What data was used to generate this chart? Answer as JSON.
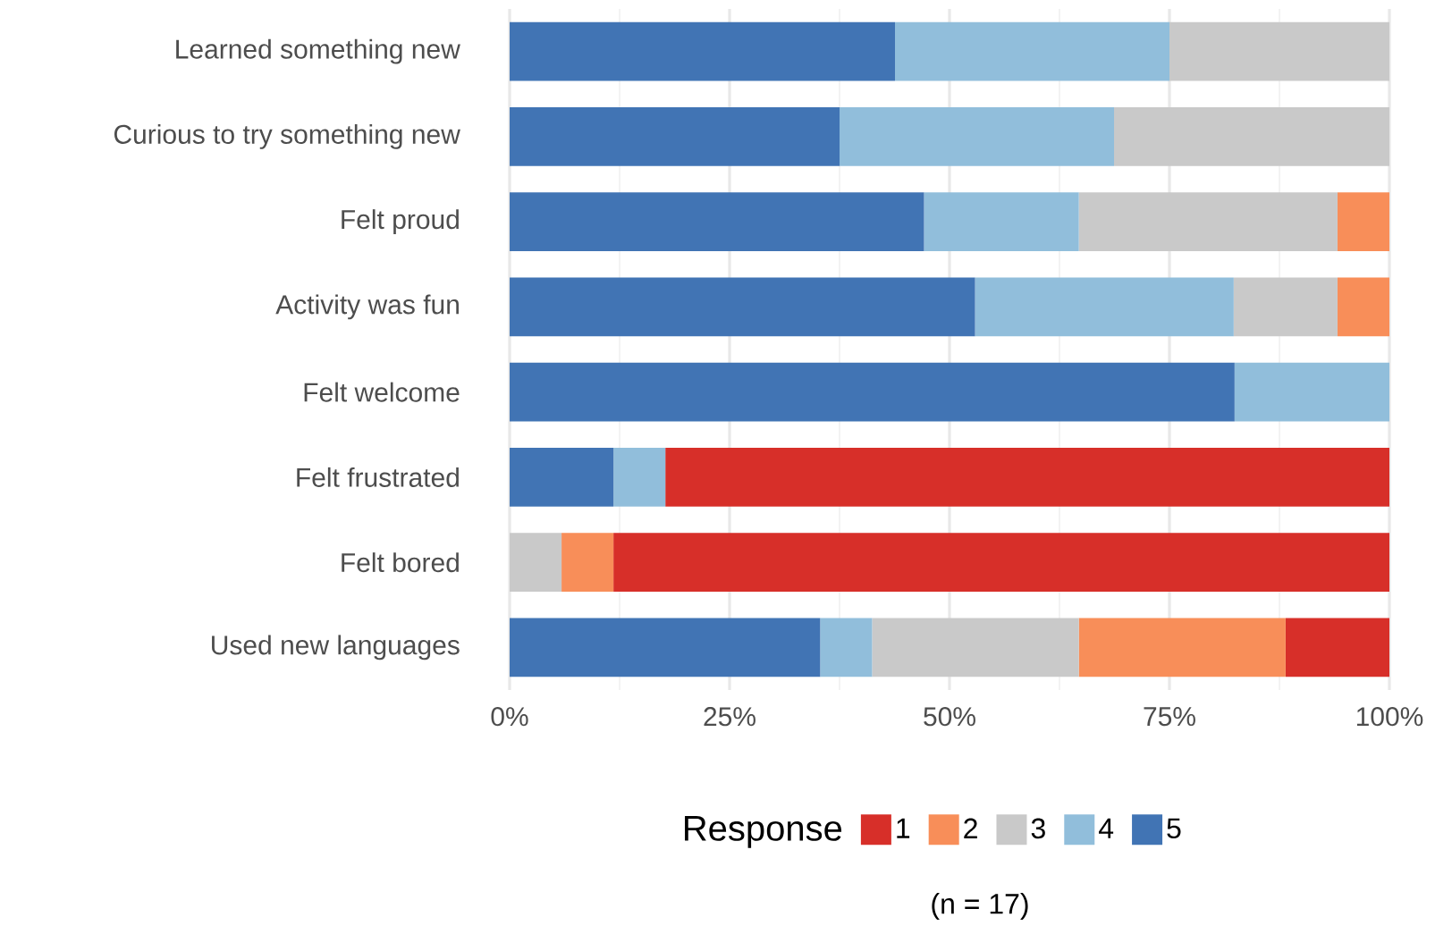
{
  "chart_data": {
    "type": "bar",
    "orientation": "horizontal",
    "stacked": true,
    "categories": [
      "Learned something new",
      "Curious to try something new",
      "Felt proud",
      "Activity was fun",
      "Felt welcome",
      "Felt frustrated",
      "Felt bored",
      "Used new languages"
    ],
    "series": [
      {
        "name": "5",
        "color": "#4174b4",
        "values": [
          43.8,
          37.5,
          47.1,
          52.9,
          82.4,
          11.8,
          0,
          35.3
        ]
      },
      {
        "name": "4",
        "color": "#91bedb",
        "values": [
          31.2,
          31.2,
          17.6,
          29.4,
          17.6,
          5.9,
          0,
          5.9
        ]
      },
      {
        "name": "3",
        "color": "#c9c9c9",
        "values": [
          25,
          31.3,
          29.4,
          11.8,
          0,
          0,
          5.9,
          23.5
        ]
      },
      {
        "name": "2",
        "color": "#f88e59",
        "values": [
          0,
          0,
          5.9,
          5.9,
          0,
          0,
          5.9,
          23.5
        ]
      },
      {
        "name": "1",
        "color": "#d72f29",
        "values": [
          0,
          0,
          0,
          0,
          0,
          82.3,
          88.2,
          11.8
        ]
      }
    ],
    "xlim": [
      0,
      100
    ],
    "xticks": [
      {
        "value": 0,
        "label": "0%"
      },
      {
        "value": 25,
        "label": "25%"
      },
      {
        "value": 50,
        "label": "50%"
      },
      {
        "value": 75,
        "label": "75%"
      },
      {
        "value": 100,
        "label": "100%"
      }
    ],
    "grid": "x",
    "legend": "bottom",
    "legend_title": "Response",
    "annotations": [
      "(n = 17)"
    ]
  }
}
